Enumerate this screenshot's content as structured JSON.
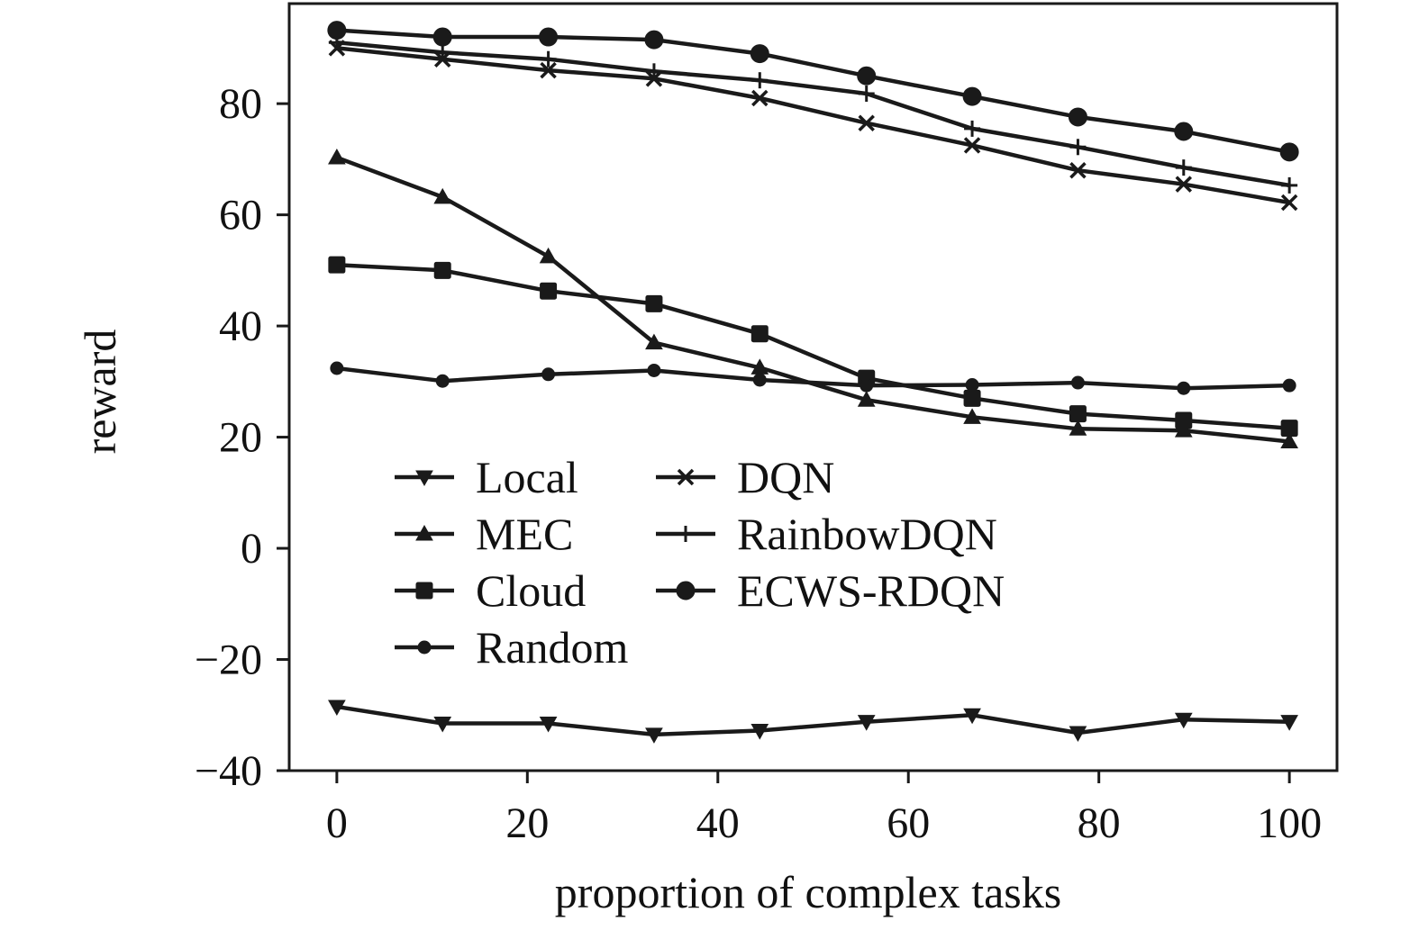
{
  "chart_data": {
    "type": "line",
    "title": "",
    "xlabel": "proportion of complex tasks",
    "ylabel": "reward",
    "xlim": [
      -5,
      105
    ],
    "ylim": [
      -40,
      98
    ],
    "xticks": [
      0,
      20,
      40,
      60,
      80,
      100
    ],
    "xtick_labels": [
      "0",
      "20",
      "40",
      "60",
      "80",
      "100"
    ],
    "yticks": [
      -40,
      -20,
      0,
      20,
      40,
      60,
      80
    ],
    "ytick_labels": [
      "−40",
      "−20",
      "0",
      "20",
      "40",
      "60",
      "80"
    ],
    "grid": false,
    "legend_position": "lower-left",
    "x": [
      0,
      11.1,
      22.2,
      33.3,
      44.4,
      55.6,
      66.7,
      77.8,
      88.9,
      100
    ],
    "series": [
      {
        "name": "Local",
        "marker": "triangle-down",
        "values": [
          -28.5,
          -31.5,
          -31.5,
          -33.5,
          -32.8,
          -31.2,
          -30,
          -33.2,
          -30.8,
          -31.2
        ]
      },
      {
        "name": "MEC",
        "marker": "triangle-up",
        "values": [
          70.3,
          63.2,
          52.5,
          37,
          32.5,
          26.7,
          23.6,
          21.5,
          21.2,
          19.2
        ]
      },
      {
        "name": "Cloud",
        "marker": "square",
        "values": [
          51,
          50,
          46.3,
          44,
          38.6,
          30.6,
          27,
          24.2,
          23,
          21.6
        ]
      },
      {
        "name": "Random",
        "marker": "small-circle",
        "values": [
          32.4,
          30.1,
          31.3,
          32,
          30.3,
          29.3,
          29.4,
          29.8,
          28.8,
          29.3
        ]
      },
      {
        "name": "DQN",
        "marker": "x",
        "values": [
          90,
          88,
          86,
          84.5,
          81,
          76.5,
          72.5,
          68,
          65.5,
          62.2
        ]
      },
      {
        "name": "RainbowDQN",
        "marker": "plus",
        "values": [
          91,
          89.2,
          88,
          85.8,
          84.2,
          81.8,
          75.5,
          72.2,
          68.5,
          65.3
        ]
      },
      {
        "name": "ECWS-RDQN",
        "marker": "circle",
        "values": [
          93.2,
          92,
          92,
          91.5,
          89,
          85,
          81.3,
          77.6,
          75,
          71.3
        ]
      }
    ]
  }
}
